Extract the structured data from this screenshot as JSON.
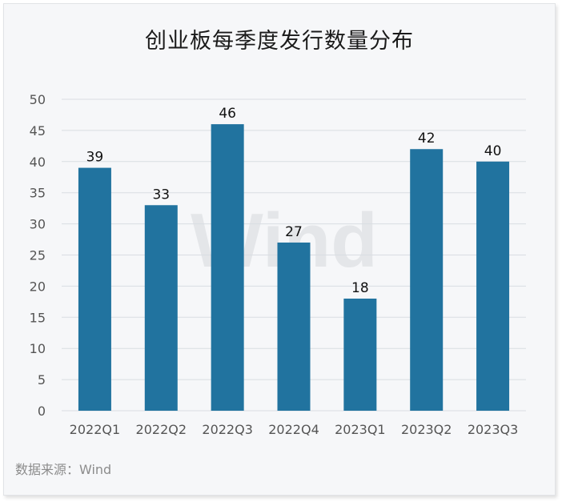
{
  "title": "创业板每季度发行数量分布",
  "source": "数据来源：Wind",
  "watermark": "Wind",
  "colors": {
    "bar": "#21739f",
    "grid": "#d9dde2",
    "axis_text": "#555555",
    "label_text": "#111111",
    "watermark": "#e4e6e9"
  },
  "chart_data": {
    "type": "bar",
    "title": "创业板每季度发行数量分布",
    "xlabel": "",
    "ylabel": "",
    "categories": [
      "2022Q1",
      "2022Q2",
      "2022Q3",
      "2022Q4",
      "2023Q1",
      "2023Q2",
      "2023Q3"
    ],
    "values": [
      39,
      33,
      46,
      27,
      18,
      42,
      40
    ],
    "ylim": [
      0,
      50
    ],
    "yticks": [
      0,
      5,
      10,
      15,
      20,
      25,
      30,
      35,
      40,
      45,
      50
    ],
    "grid": true,
    "legend": "none",
    "data_labels": true
  }
}
